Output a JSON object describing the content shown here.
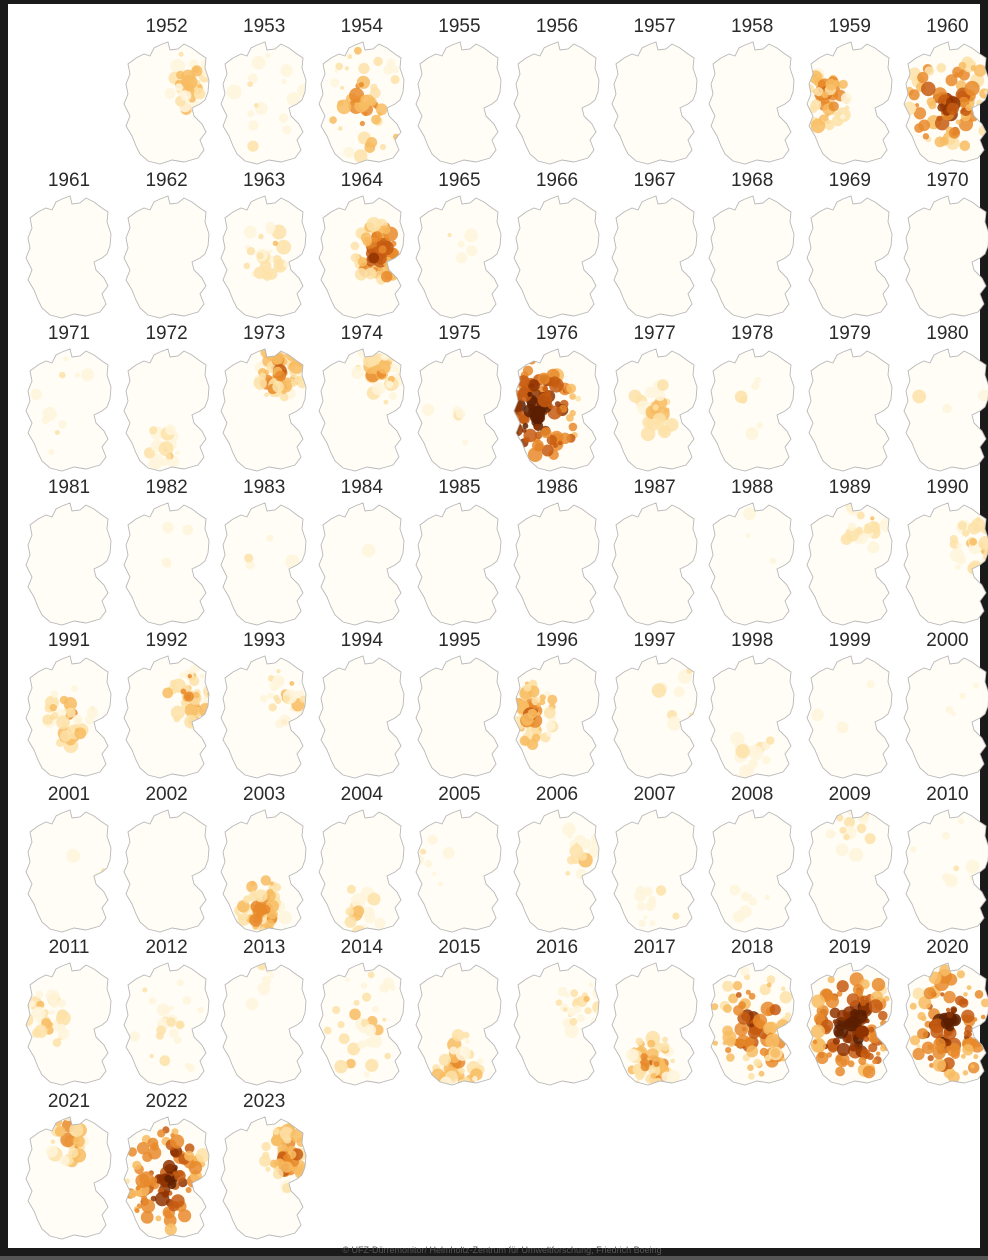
{
  "colors": {
    "outline": "#b8b8b8",
    "fill_base": "#fffdf6",
    "scale": [
      "#fff5dc",
      "#fde2a8",
      "#f8bc62",
      "#e78a2a",
      "#c55a11",
      "#8f3300",
      "#5c1e00"
    ]
  },
  "years": [
    {
      "year": "1952",
      "severity": 0.28,
      "pattern": "east"
    },
    {
      "year": "1953",
      "severity": 0.12,
      "pattern": "scattered"
    },
    {
      "year": "1954",
      "severity": 0.4,
      "pattern": "broad"
    },
    {
      "year": "1955",
      "severity": 0.0,
      "pattern": "none"
    },
    {
      "year": "1956",
      "severity": 0.0,
      "pattern": "none"
    },
    {
      "year": "1957",
      "severity": 0.0,
      "pattern": "none"
    },
    {
      "year": "1958",
      "severity": 0.0,
      "pattern": "none"
    },
    {
      "year": "1959",
      "severity": 0.45,
      "pattern": "west"
    },
    {
      "year": "1960",
      "severity": 0.62,
      "pattern": "broad"
    },
    {
      "year": "1961",
      "severity": 0.0,
      "pattern": "none"
    },
    {
      "year": "1962",
      "severity": 0.0,
      "pattern": "none"
    },
    {
      "year": "1963",
      "severity": 0.2,
      "pattern": "center"
    },
    {
      "year": "1964",
      "severity": 0.6,
      "pattern": "center-east"
    },
    {
      "year": "1965",
      "severity": 0.04,
      "pattern": "center"
    },
    {
      "year": "1966",
      "severity": 0.0,
      "pattern": "none"
    },
    {
      "year": "1967",
      "severity": 0.0,
      "pattern": "none"
    },
    {
      "year": "1968",
      "severity": 0.0,
      "pattern": "none"
    },
    {
      "year": "1969",
      "severity": 0.0,
      "pattern": "none"
    },
    {
      "year": "1970",
      "severity": 0.0,
      "pattern": "none"
    },
    {
      "year": "1971",
      "severity": 0.08,
      "pattern": "scattered"
    },
    {
      "year": "1972",
      "severity": 0.18,
      "pattern": "south"
    },
    {
      "year": "1973",
      "severity": 0.45,
      "pattern": "northeast"
    },
    {
      "year": "1974",
      "severity": 0.3,
      "pattern": "northeast"
    },
    {
      "year": "1975",
      "severity": 0.04,
      "pattern": "scattered"
    },
    {
      "year": "1976",
      "severity": 0.85,
      "pattern": "west-broad"
    },
    {
      "year": "1977",
      "severity": 0.22,
      "pattern": "center"
    },
    {
      "year": "1978",
      "severity": 0.05,
      "pattern": "center"
    },
    {
      "year": "1979",
      "severity": 0.0,
      "pattern": "none"
    },
    {
      "year": "1980",
      "severity": 0.02,
      "pattern": "scattered"
    },
    {
      "year": "1981",
      "severity": 0.0,
      "pattern": "none"
    },
    {
      "year": "1982",
      "severity": 0.03,
      "pattern": "scattered"
    },
    {
      "year": "1983",
      "severity": 0.03,
      "pattern": "scattered"
    },
    {
      "year": "1984",
      "severity": 0.01,
      "pattern": "scattered"
    },
    {
      "year": "1985",
      "severity": 0.0,
      "pattern": "none"
    },
    {
      "year": "1986",
      "severity": 0.0,
      "pattern": "none"
    },
    {
      "year": "1987",
      "severity": 0.0,
      "pattern": "none"
    },
    {
      "year": "1988",
      "severity": 0.02,
      "pattern": "scattered"
    },
    {
      "year": "1989",
      "severity": 0.18,
      "pattern": "northeast"
    },
    {
      "year": "1990",
      "severity": 0.22,
      "pattern": "east"
    },
    {
      "year": "1991",
      "severity": 0.32,
      "pattern": "center"
    },
    {
      "year": "1992",
      "severity": 0.38,
      "pattern": "east"
    },
    {
      "year": "1993",
      "severity": 0.22,
      "pattern": "east"
    },
    {
      "year": "1994",
      "severity": 0.0,
      "pattern": "none"
    },
    {
      "year": "1995",
      "severity": 0.0,
      "pattern": "none"
    },
    {
      "year": "1996",
      "severity": 0.42,
      "pattern": "west"
    },
    {
      "year": "1997",
      "severity": 0.08,
      "pattern": "east"
    },
    {
      "year": "1998",
      "severity": 0.14,
      "pattern": "south"
    },
    {
      "year": "1999",
      "severity": 0.02,
      "pattern": "scattered"
    },
    {
      "year": "2000",
      "severity": 0.03,
      "pattern": "east"
    },
    {
      "year": "2001",
      "severity": 0.02,
      "pattern": "east"
    },
    {
      "year": "2002",
      "severity": 0.0,
      "pattern": "none"
    },
    {
      "year": "2003",
      "severity": 0.42,
      "pattern": "south"
    },
    {
      "year": "2004",
      "severity": 0.14,
      "pattern": "south"
    },
    {
      "year": "2005",
      "severity": 0.06,
      "pattern": "west"
    },
    {
      "year": "2006",
      "severity": 0.14,
      "pattern": "east"
    },
    {
      "year": "2007",
      "severity": 0.1,
      "pattern": "south"
    },
    {
      "year": "2008",
      "severity": 0.06,
      "pattern": "south"
    },
    {
      "year": "2009",
      "severity": 0.14,
      "pattern": "north"
    },
    {
      "year": "2010",
      "severity": 0.06,
      "pattern": "scattered"
    },
    {
      "year": "2011",
      "severity": 0.22,
      "pattern": "west"
    },
    {
      "year": "2012",
      "severity": 0.18,
      "pattern": "scattered"
    },
    {
      "year": "2013",
      "severity": 0.05,
      "pattern": "north"
    },
    {
      "year": "2014",
      "severity": 0.24,
      "pattern": "broad"
    },
    {
      "year": "2015",
      "severity": 0.32,
      "pattern": "south"
    },
    {
      "year": "2016",
      "severity": 0.2,
      "pattern": "east"
    },
    {
      "year": "2017",
      "severity": 0.4,
      "pattern": "south"
    },
    {
      "year": "2018",
      "severity": 0.62,
      "pattern": "broad"
    },
    {
      "year": "2019",
      "severity": 0.9,
      "pattern": "broad"
    },
    {
      "year": "2020",
      "severity": 0.75,
      "pattern": "broad"
    },
    {
      "year": "2021",
      "severity": 0.34,
      "pattern": "north"
    },
    {
      "year": "2022",
      "severity": 0.78,
      "pattern": "broad"
    },
    {
      "year": "2023",
      "severity": 0.5,
      "pattern": "east"
    }
  ],
  "credit": "© UFZ-Dürremonitor/ Helmholtz-Zentrum für Umweltforschung, Friedrich Boeing"
}
